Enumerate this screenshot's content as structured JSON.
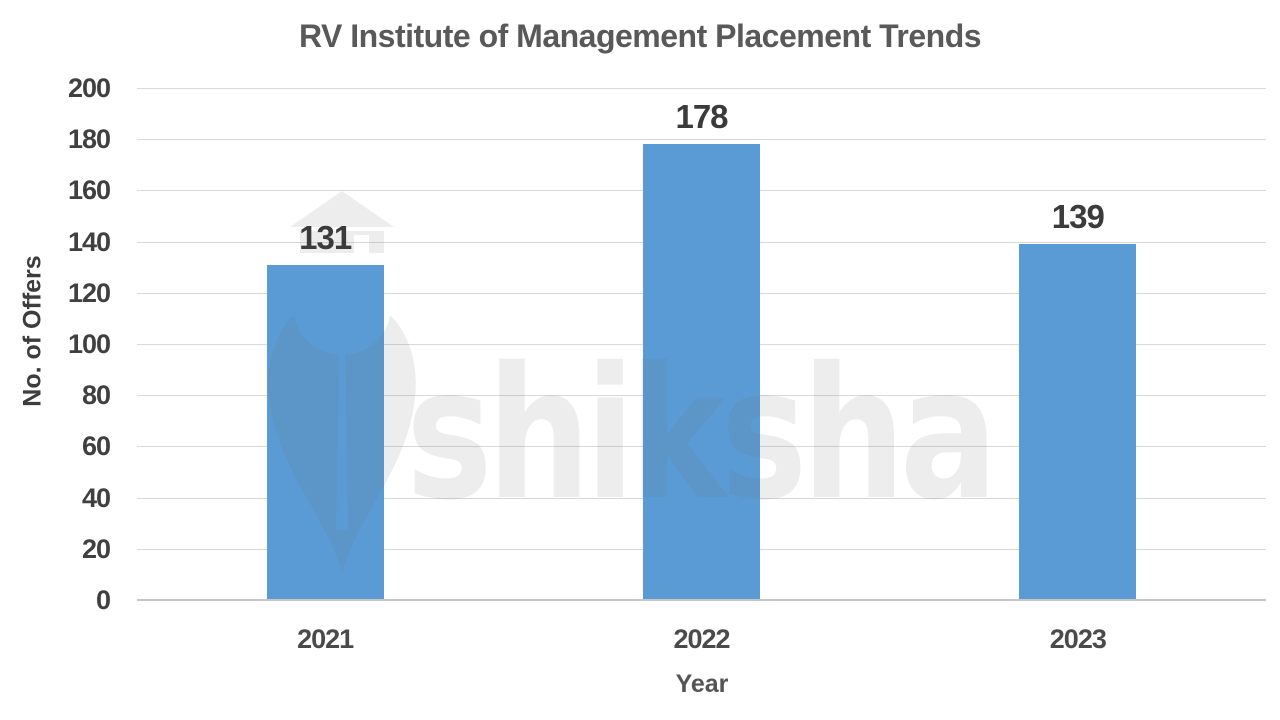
{
  "watermark": {
    "text": "shiksha",
    "color": "rgba(110,110,110,0.12)"
  },
  "chart_data": {
    "type": "bar",
    "title": "RV Institute of Management Placement Trends",
    "xlabel": "Year",
    "ylabel": "No. of Offers",
    "categories": [
      "2021",
      "2022",
      "2023"
    ],
    "values": [
      131,
      178,
      139
    ],
    "data_labels": [
      "131",
      "178",
      "139"
    ],
    "yticks": [
      0,
      20,
      40,
      60,
      80,
      100,
      120,
      140,
      160,
      180,
      200
    ],
    "ylim": [
      0,
      200
    ],
    "grid": "horizontal",
    "legend_position": "none",
    "colors": {
      "bar": "#5B9BD5",
      "gridline": "#D9D9D9",
      "axis_line": "#C6C6C6",
      "title_text": "#595959",
      "tick_text": "#404040",
      "data_label_text": "#3B3B3B"
    }
  }
}
